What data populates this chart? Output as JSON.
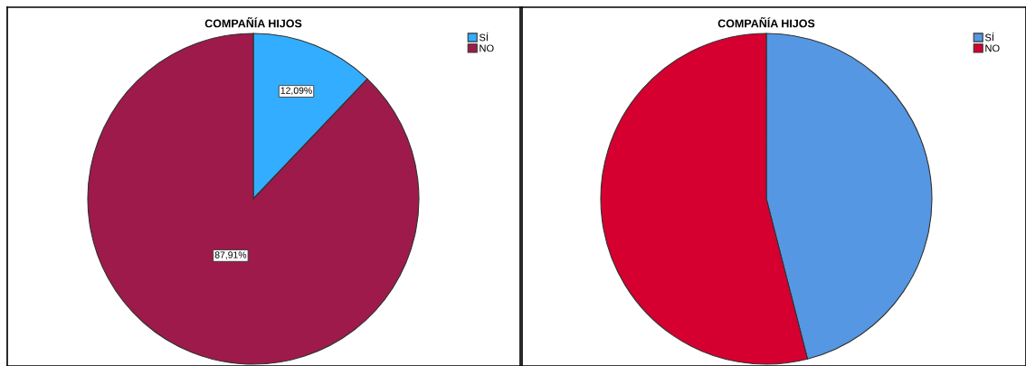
{
  "chart_data": [
    {
      "type": "pie",
      "title": "COMPAÑÍA HIJOS",
      "categories": [
        "SÍ",
        "NO"
      ],
      "values": [
        12.09,
        87.91
      ],
      "colors": [
        "#33adff",
        "#9e1a4b"
      ],
      "value_labels": [
        "12,09%",
        "87,91%"
      ],
      "legend": "top right"
    },
    {
      "type": "pie",
      "title": "COMPAÑÍA HIJOS",
      "categories": [
        "SÍ",
        "NO"
      ],
      "values": [
        46,
        54
      ],
      "colors": [
        "#5597e2",
        "#d5002f"
      ],
      "legend": "top right"
    }
  ]
}
